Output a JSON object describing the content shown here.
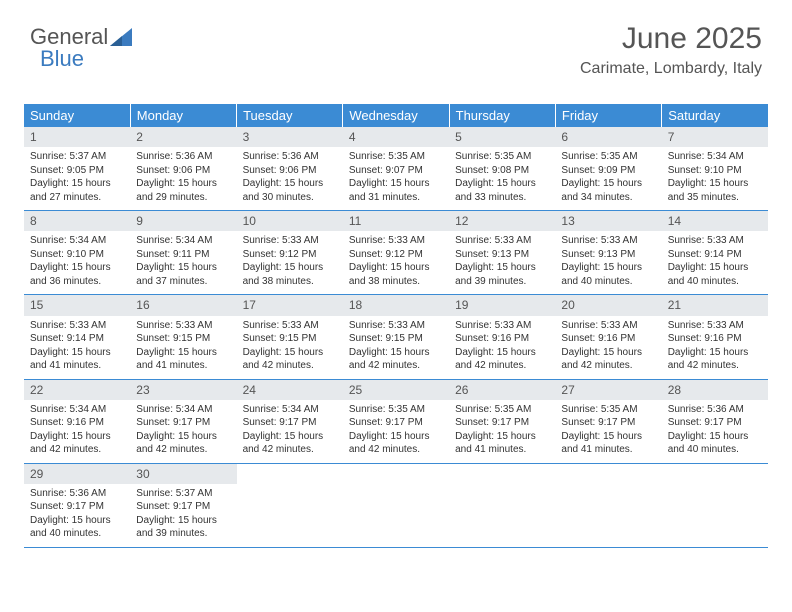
{
  "logo": {
    "text1": "General",
    "text2": "Blue"
  },
  "header": {
    "month": "June 2025",
    "location": "Carimate, Lombardy, Italy"
  },
  "styling": {
    "header_bg": "#3b8bd4",
    "header_text": "#ffffff",
    "daynum_bg": "#e6e9ec",
    "daynum_text": "#555555",
    "body_text": "#333333",
    "border_color": "#3b8bd4",
    "page_bg": "#ffffff",
    "logo_blue": "#3b7bbf",
    "month_fontsize": 30,
    "location_fontsize": 16,
    "th_fontsize": 13,
    "cell_fontsize": 10
  },
  "columns": [
    "Sunday",
    "Monday",
    "Tuesday",
    "Wednesday",
    "Thursday",
    "Friday",
    "Saturday"
  ],
  "weeks": [
    [
      {
        "n": "1",
        "sr": "5:37 AM",
        "ss": "9:05 PM",
        "dl": "15 hours and 27 minutes."
      },
      {
        "n": "2",
        "sr": "5:36 AM",
        "ss": "9:06 PM",
        "dl": "15 hours and 29 minutes."
      },
      {
        "n": "3",
        "sr": "5:36 AM",
        "ss": "9:06 PM",
        "dl": "15 hours and 30 minutes."
      },
      {
        "n": "4",
        "sr": "5:35 AM",
        "ss": "9:07 PM",
        "dl": "15 hours and 31 minutes."
      },
      {
        "n": "5",
        "sr": "5:35 AM",
        "ss": "9:08 PM",
        "dl": "15 hours and 33 minutes."
      },
      {
        "n": "6",
        "sr": "5:35 AM",
        "ss": "9:09 PM",
        "dl": "15 hours and 34 minutes."
      },
      {
        "n": "7",
        "sr": "5:34 AM",
        "ss": "9:10 PM",
        "dl": "15 hours and 35 minutes."
      }
    ],
    [
      {
        "n": "8",
        "sr": "5:34 AM",
        "ss": "9:10 PM",
        "dl": "15 hours and 36 minutes."
      },
      {
        "n": "9",
        "sr": "5:34 AM",
        "ss": "9:11 PM",
        "dl": "15 hours and 37 minutes."
      },
      {
        "n": "10",
        "sr": "5:33 AM",
        "ss": "9:12 PM",
        "dl": "15 hours and 38 minutes."
      },
      {
        "n": "11",
        "sr": "5:33 AM",
        "ss": "9:12 PM",
        "dl": "15 hours and 38 minutes."
      },
      {
        "n": "12",
        "sr": "5:33 AM",
        "ss": "9:13 PM",
        "dl": "15 hours and 39 minutes."
      },
      {
        "n": "13",
        "sr": "5:33 AM",
        "ss": "9:13 PM",
        "dl": "15 hours and 40 minutes."
      },
      {
        "n": "14",
        "sr": "5:33 AM",
        "ss": "9:14 PM",
        "dl": "15 hours and 40 minutes."
      }
    ],
    [
      {
        "n": "15",
        "sr": "5:33 AM",
        "ss": "9:14 PM",
        "dl": "15 hours and 41 minutes."
      },
      {
        "n": "16",
        "sr": "5:33 AM",
        "ss": "9:15 PM",
        "dl": "15 hours and 41 minutes."
      },
      {
        "n": "17",
        "sr": "5:33 AM",
        "ss": "9:15 PM",
        "dl": "15 hours and 42 minutes."
      },
      {
        "n": "18",
        "sr": "5:33 AM",
        "ss": "9:15 PM",
        "dl": "15 hours and 42 minutes."
      },
      {
        "n": "19",
        "sr": "5:33 AM",
        "ss": "9:16 PM",
        "dl": "15 hours and 42 minutes."
      },
      {
        "n": "20",
        "sr": "5:33 AM",
        "ss": "9:16 PM",
        "dl": "15 hours and 42 minutes."
      },
      {
        "n": "21",
        "sr": "5:33 AM",
        "ss": "9:16 PM",
        "dl": "15 hours and 42 minutes."
      }
    ],
    [
      {
        "n": "22",
        "sr": "5:34 AM",
        "ss": "9:16 PM",
        "dl": "15 hours and 42 minutes."
      },
      {
        "n": "23",
        "sr": "5:34 AM",
        "ss": "9:17 PM",
        "dl": "15 hours and 42 minutes."
      },
      {
        "n": "24",
        "sr": "5:34 AM",
        "ss": "9:17 PM",
        "dl": "15 hours and 42 minutes."
      },
      {
        "n": "25",
        "sr": "5:35 AM",
        "ss": "9:17 PM",
        "dl": "15 hours and 42 minutes."
      },
      {
        "n": "26",
        "sr": "5:35 AM",
        "ss": "9:17 PM",
        "dl": "15 hours and 41 minutes."
      },
      {
        "n": "27",
        "sr": "5:35 AM",
        "ss": "9:17 PM",
        "dl": "15 hours and 41 minutes."
      },
      {
        "n": "28",
        "sr": "5:36 AM",
        "ss": "9:17 PM",
        "dl": "15 hours and 40 minutes."
      }
    ],
    [
      {
        "n": "29",
        "sr": "5:36 AM",
        "ss": "9:17 PM",
        "dl": "15 hours and 40 minutes."
      },
      {
        "n": "30",
        "sr": "5:37 AM",
        "ss": "9:17 PM",
        "dl": "15 hours and 39 minutes."
      },
      null,
      null,
      null,
      null,
      null
    ]
  ],
  "labels": {
    "sunrise": "Sunrise: ",
    "sunset": "Sunset: ",
    "daylight": "Daylight: "
  }
}
